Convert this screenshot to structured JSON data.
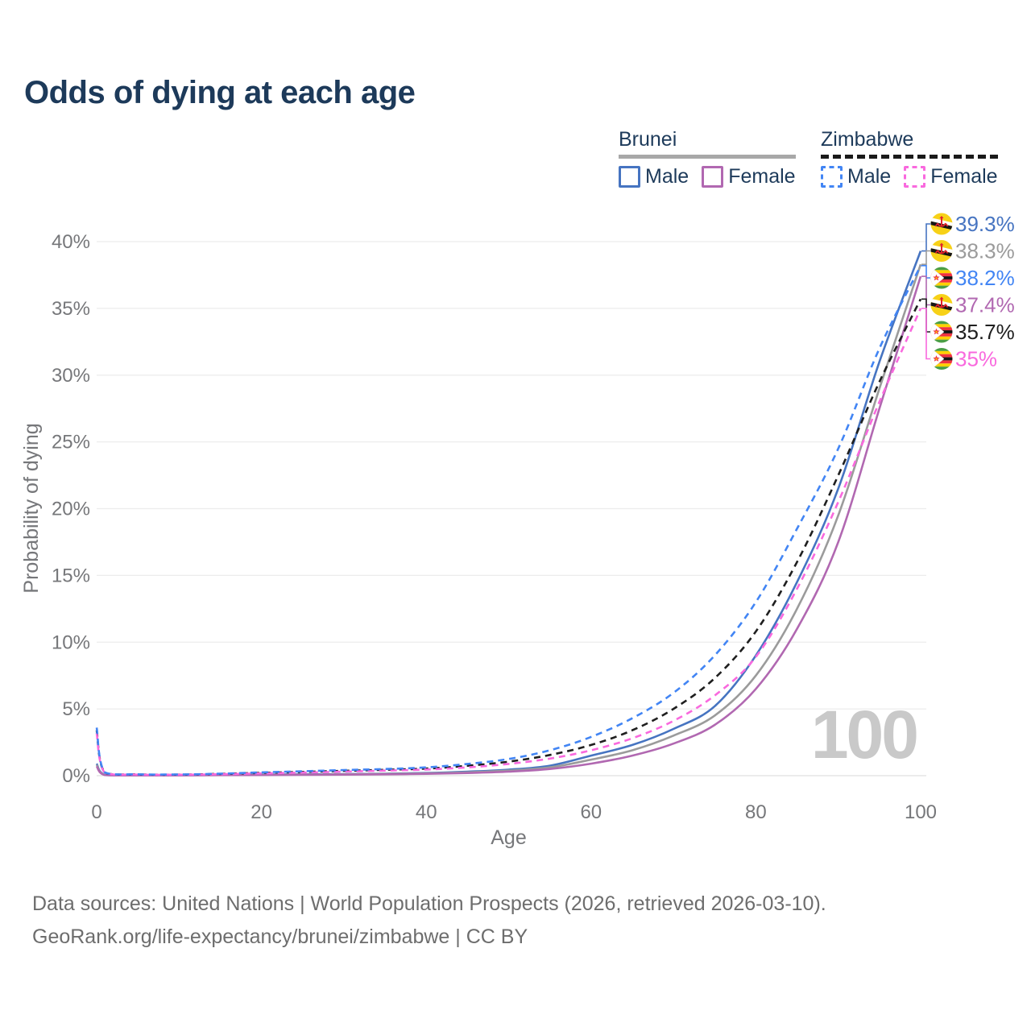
{
  "title": "Odds of dying at each age",
  "legend": {
    "groups": [
      {
        "label": "Brunei",
        "line_style": "solid",
        "line_color": "#a8a8a8",
        "items": [
          {
            "label": "Male",
            "color": "#4674c1",
            "style": "solid"
          },
          {
            "label": "Female",
            "color": "#b168b1",
            "style": "solid"
          }
        ]
      },
      {
        "label": "Zimbabwe",
        "line_style": "dashed",
        "line_color": "#1a1a1a",
        "items": [
          {
            "label": "Male",
            "color": "#4285f4",
            "style": "dashed"
          },
          {
            "label": "Female",
            "color": "#f969de",
            "style": "dashed"
          }
        ]
      }
    ]
  },
  "chart_data": {
    "type": "line",
    "title": "Odds of dying at each age",
    "xlabel": "Age",
    "ylabel": "Probability of dying",
    "xlim": [
      0,
      100
    ],
    "ylim_percent": [
      0,
      40
    ],
    "x_ticks": [
      0,
      20,
      40,
      60,
      80,
      100
    ],
    "y_ticks": [
      "0%",
      "5%",
      "10%",
      "15%",
      "20%",
      "25%",
      "30%",
      "35%",
      "40%"
    ],
    "grid": "horizontal",
    "legend_position": "top-right",
    "watermark": "100",
    "x": [
      0,
      1,
      5,
      10,
      15,
      20,
      25,
      30,
      35,
      40,
      45,
      50,
      55,
      60,
      65,
      70,
      75,
      80,
      85,
      90,
      95,
      100
    ],
    "series": [
      {
        "name": "Brunei Male",
        "country": "brunei",
        "sex": "male",
        "color": "#4674c1",
        "dash": "solid",
        "end_label": "39.3%",
        "final_value": 39.3,
        "values": [
          0.9,
          0.07,
          0.03,
          0.03,
          0.06,
          0.09,
          0.1,
          0.12,
          0.15,
          0.2,
          0.3,
          0.45,
          0.75,
          1.5,
          2.3,
          3.5,
          5.2,
          9.0,
          14.5,
          21.5,
          31.0,
          39.3
        ]
      },
      {
        "name": "Brunei Combined",
        "country": "brunei",
        "sex": "both",
        "color": "#9b9b9b",
        "dash": "solid",
        "end_label": "38.3%",
        "final_value": 38.3,
        "values": [
          0.8,
          0.06,
          0.03,
          0.03,
          0.05,
          0.07,
          0.08,
          0.1,
          0.13,
          0.17,
          0.25,
          0.38,
          0.62,
          1.2,
          1.9,
          3.0,
          4.5,
          7.5,
          12.5,
          19.5,
          29.0,
          38.3
        ]
      },
      {
        "name": "Brunei Female",
        "country": "brunei",
        "sex": "female",
        "color": "#b168b1",
        "dash": "solid",
        "end_label": "37.4%",
        "final_value": 37.4,
        "values": [
          0.7,
          0.05,
          0.02,
          0.02,
          0.04,
          0.05,
          0.06,
          0.08,
          0.1,
          0.14,
          0.2,
          0.3,
          0.5,
          0.9,
          1.5,
          2.4,
          3.8,
          6.5,
          11.0,
          17.5,
          27.5,
          37.4
        ]
      },
      {
        "name": "Zimbabwe Combined",
        "country": "zimbabwe",
        "sex": "both",
        "color": "#1f1f1f",
        "dash": "dashed",
        "end_label": "35.7%",
        "final_value": 35.7,
        "values": [
          3.4,
          0.23,
          0.09,
          0.08,
          0.13,
          0.21,
          0.28,
          0.36,
          0.44,
          0.53,
          0.74,
          1.05,
          1.55,
          2.3,
          3.4,
          5.0,
          7.3,
          10.8,
          16.0,
          22.5,
          29.5,
          35.7
        ]
      },
      {
        "name": "Zimbabwe Female",
        "country": "zimbabwe",
        "sex": "female",
        "color": "#f969de",
        "dash": "dashed",
        "end_label": "35%",
        "final_value": 35.0,
        "values": [
          3.2,
          0.21,
          0.08,
          0.07,
          0.11,
          0.17,
          0.23,
          0.3,
          0.38,
          0.46,
          0.62,
          0.88,
          1.28,
          1.9,
          2.8,
          4.1,
          6.0,
          8.9,
          14.0,
          20.5,
          28.0,
          35.0
        ]
      },
      {
        "name": "Zimbabwe Male",
        "country": "zimbabwe",
        "sex": "male",
        "color": "#4285f4",
        "dash": "dashed",
        "end_label": "38.2%",
        "final_value": 38.2,
        "values": [
          3.6,
          0.25,
          0.1,
          0.09,
          0.15,
          0.25,
          0.33,
          0.42,
          0.5,
          0.62,
          0.88,
          1.25,
          1.9,
          2.9,
          4.3,
          6.2,
          9.0,
          13.0,
          18.5,
          24.5,
          32.0,
          38.2
        ]
      }
    ]
  },
  "footer": {
    "line1": "Data sources: United Nations | World Population Prospects (2026, retrieved 2026-03-10).",
    "line2": "GeoRank.org/life-expectancy/brunei/zimbabwe | CC BY"
  },
  "colors": {
    "title": "#1d3a5a",
    "axis_text": "#76777a",
    "gridline": "#ececec",
    "zero_gridline": "#e0e0e0",
    "watermark": "#c9c9c9"
  }
}
